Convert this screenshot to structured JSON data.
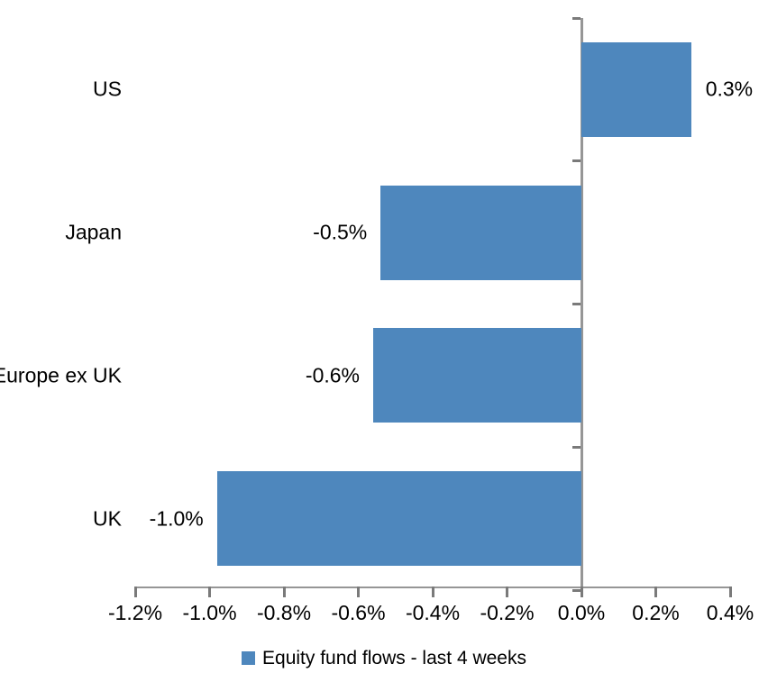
{
  "chart_data": {
    "type": "bar",
    "orientation": "horizontal",
    "title": "",
    "categories": [
      "US",
      "Japan",
      "Europe ex UK",
      "UK"
    ],
    "values": [
      0.295,
      -0.54,
      -0.56,
      -0.98
    ],
    "data_labels": [
      "0.3%",
      "-0.5%",
      "-0.6%",
      "-1.0%"
    ],
    "x_ticks": [
      -1.2,
      -1.0,
      -0.8,
      -0.6,
      -0.4,
      -0.2,
      0.0,
      0.2,
      0.4
    ],
    "x_tick_labels": [
      "-1.2%",
      "-1.0%",
      "-0.8%",
      "-0.6%",
      "-0.4%",
      "-0.2%",
      "0.0%",
      "0.2%",
      "0.4%"
    ],
    "xlim": [
      -1.2,
      0.4
    ],
    "grid": false,
    "legend": [
      "Equity fund flows - last 4 weeks"
    ],
    "legend_position": "bottom",
    "colors": {
      "bar": "#4E87BD",
      "axis_line": "#969696",
      "tick": "#7A7A7A",
      "text": "#000000",
      "background": "#FFFFFF"
    }
  }
}
